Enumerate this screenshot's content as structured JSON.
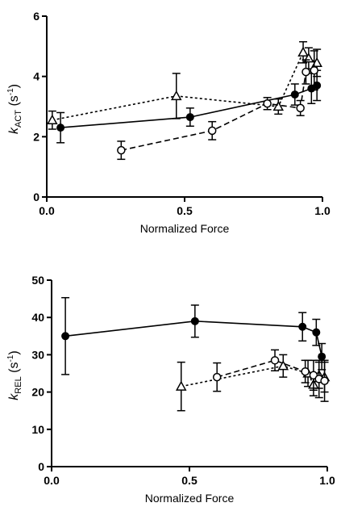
{
  "chart_data": [
    {
      "type": "scatter",
      "title": "",
      "xlabel": "Normalized Force",
      "ylabel_main": "k",
      "ylabel_sub": "ACT",
      "ylabel_unit": " (s",
      "ylabel_sup": "-1",
      "ylabel_close": ")",
      "xlim": [
        0,
        1.0
      ],
      "ylim": [
        0,
        6
      ],
      "xticks": [
        0.0,
        0.5,
        1.0
      ],
      "xtick_labels": [
        "0.0",
        "0.5",
        "1.0"
      ],
      "yticks": [
        0,
        2,
        4,
        6
      ],
      "ytick_labels": [
        "0",
        "2",
        "4",
        "6"
      ],
      "series": [
        {
          "marker": "filled-circle",
          "line": "solid",
          "points": [
            {
              "x": 0.05,
              "y": 2.3,
              "err": 0.5
            },
            {
              "x": 0.52,
              "y": 2.65,
              "err": 0.3
            },
            {
              "x": 0.9,
              "y": 3.4,
              "err": 0.35
            },
            {
              "x": 0.96,
              "y": 3.6,
              "err": 0.5
            },
            {
              "x": 0.98,
              "y": 3.7,
              "err": 0.5
            }
          ]
        },
        {
          "marker": "open-triangle",
          "line": "dotted",
          "points": [
            {
              "x": 0.02,
              "y": 2.55,
              "err": 0.3
            },
            {
              "x": 0.47,
              "y": 3.35,
              "err": 0.75
            },
            {
              "x": 0.84,
              "y": 3.0,
              "err": 0.25
            },
            {
              "x": 0.93,
              "y": 4.8,
              "err": 0.35
            },
            {
              "x": 0.95,
              "y": 4.6,
              "err": 0.35
            },
            {
              "x": 0.98,
              "y": 4.45,
              "err": 0.45
            }
          ]
        },
        {
          "marker": "open-circle",
          "line": "dashed",
          "points": [
            {
              "x": 0.27,
              "y": 1.55,
              "err": 0.3
            },
            {
              "x": 0.6,
              "y": 2.2,
              "err": 0.3
            },
            {
              "x": 0.8,
              "y": 3.1,
              "err": 0.2
            },
            {
              "x": 0.92,
              "y": 2.95,
              "err": 0.25
            },
            {
              "x": 0.94,
              "y": 4.15,
              "err": 0.4
            },
            {
              "x": 0.97,
              "y": 4.2,
              "err": 0.65
            }
          ]
        }
      ]
    },
    {
      "type": "scatter",
      "title": "",
      "xlabel": "Normalized Force",
      "ylabel_main": "k",
      "ylabel_sub": "REL",
      "ylabel_unit": " (s",
      "ylabel_sup": "-1",
      "ylabel_close": ")",
      "xlim": [
        0,
        1.0
      ],
      "ylim": [
        0,
        50
      ],
      "xticks": [
        0.0,
        0.5,
        1.0
      ],
      "xtick_labels": [
        "0.0",
        "0.5",
        "1.0"
      ],
      "yticks": [
        0,
        10,
        20,
        30,
        40,
        50
      ],
      "ytick_labels": [
        "0",
        "10",
        "20",
        "30",
        "40",
        "50"
      ],
      "series": [
        {
          "marker": "filled-circle",
          "line": "solid",
          "points": [
            {
              "x": 0.05,
              "y": 35,
              "err": 10.3
            },
            {
              "x": 0.52,
              "y": 39,
              "err": 4.3
            },
            {
              "x": 0.91,
              "y": 37.5,
              "err": 3.8
            },
            {
              "x": 0.96,
              "y": 36,
              "err": 3.5
            },
            {
              "x": 0.98,
              "y": 29.5,
              "err": 3.5
            }
          ]
        },
        {
          "marker": "open-triangle",
          "line": "dotted",
          "points": [
            {
              "x": 0.47,
              "y": 21.5,
              "err": 6.5
            },
            {
              "x": 0.84,
              "y": 27,
              "err": 3.0
            },
            {
              "x": 0.93,
              "y": 25,
              "err": 3.5
            },
            {
              "x": 0.95,
              "y": 22,
              "err": 3.0
            },
            {
              "x": 0.97,
              "y": 24.5,
              "err": 3.5
            },
            {
              "x": 0.99,
              "y": 24,
              "err": 4.0
            }
          ]
        },
        {
          "marker": "open-circle",
          "line": "dashed",
          "points": [
            {
              "x": 0.6,
              "y": 24,
              "err": 3.8
            },
            {
              "x": 0.81,
              "y": 28.5,
              "err": 2.8
            },
            {
              "x": 0.92,
              "y": 25.5,
              "err": 3.0
            },
            {
              "x": 0.95,
              "y": 24.5,
              "err": 4.0
            },
            {
              "x": 0.97,
              "y": 23.5,
              "err": 5.0
            },
            {
              "x": 0.99,
              "y": 23,
              "err": 5.5
            }
          ]
        }
      ]
    }
  ]
}
